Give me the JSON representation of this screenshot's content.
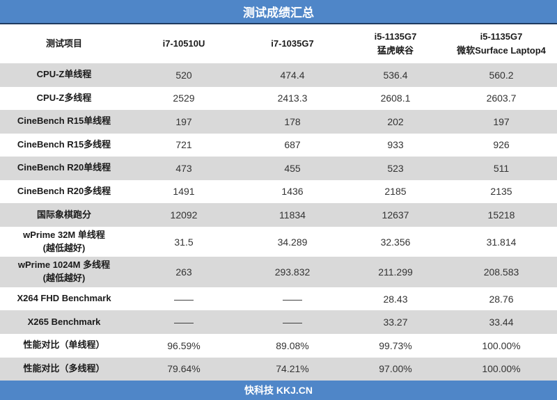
{
  "title": "测试成绩汇总",
  "footer": "快科技 KKJ.CN",
  "colors": {
    "accent_blue": "#4F86C8",
    "dark_border": "#1F3B60",
    "stripe_gray": "#D9D9D9",
    "text_dark": "#1A1A1A"
  },
  "table": {
    "columns": [
      {
        "line1": "测试项目",
        "line2": ""
      },
      {
        "line1": "i7-10510U",
        "line2": ""
      },
      {
        "line1": "i7-1035G7",
        "line2": ""
      },
      {
        "line1": "i5-1135G7",
        "line2": "猛虎峡谷"
      },
      {
        "line1": "i5-1135G7",
        "line2": "微软Surface Laptop4"
      }
    ],
    "rows": [
      {
        "label": "CPU-Z单线程",
        "values": [
          "520",
          "474.4",
          "536.4",
          "560.2"
        ]
      },
      {
        "label": "CPU-Z多线程",
        "values": [
          "2529",
          "2413.3",
          "2608.1",
          "2603.7"
        ]
      },
      {
        "label": "CineBench R15单线程",
        "values": [
          "197",
          "178",
          "202",
          "197"
        ]
      },
      {
        "label": "CineBench R15多线程",
        "values": [
          "721",
          "687",
          "933",
          "926"
        ]
      },
      {
        "label": "CineBench R20单线程",
        "values": [
          "473",
          "455",
          "523",
          "511"
        ]
      },
      {
        "label": "CineBench R20多线程",
        "values": [
          "1491",
          "1436",
          "2185",
          "2135"
        ]
      },
      {
        "label": "国际象棋跑分",
        "values": [
          "12092",
          "11834",
          "12637",
          "15218"
        ]
      },
      {
        "label": "wPrime 32M 单线程",
        "label2": "(越低越好)",
        "values": [
          "31.5",
          "34.289",
          "32.356",
          "31.814"
        ]
      },
      {
        "label": "wPrime 1024M 多线程",
        "label2": "(越低越好)",
        "values": [
          "263",
          "293.832",
          "211.299",
          "208.583"
        ]
      },
      {
        "label": "X264 FHD Benchmark",
        "values": [
          "——",
          "——",
          "28.43",
          "28.76"
        ]
      },
      {
        "label": "X265 Benchmark",
        "values": [
          "——",
          "——",
          "33.27",
          "33.44"
        ]
      },
      {
        "label": "性能对比（单线程）",
        "values": [
          "96.59%",
          "89.08%",
          "99.73%",
          "100.00%"
        ]
      },
      {
        "label": "性能对比（多线程）",
        "values": [
          "79.64%",
          "74.21%",
          "97.00%",
          "100.00%"
        ]
      }
    ]
  }
}
